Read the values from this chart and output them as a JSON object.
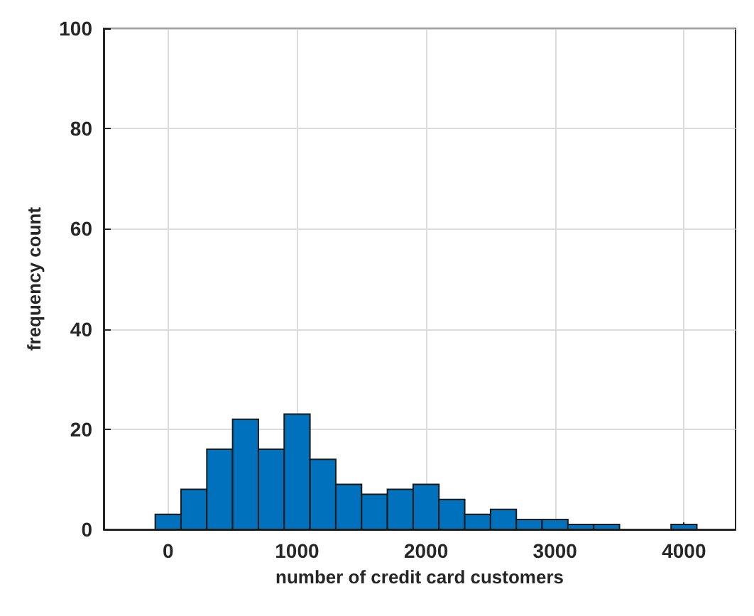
{
  "chart_data": {
    "type": "histogram",
    "xlabel": "number of credit card customers",
    "ylabel": "frequency count",
    "bins": [
      -100,
      100,
      300,
      500,
      700,
      900,
      1100,
      1300,
      1500,
      1700,
      1900,
      2100,
      2300,
      2500,
      2700,
      2900,
      3100,
      3300,
      3500,
      3700,
      3900,
      4100
    ],
    "values": [
      3,
      8,
      16,
      22,
      16,
      23,
      14,
      9,
      7,
      8,
      9,
      6,
      3,
      4,
      2,
      2,
      1,
      1,
      0,
      0,
      1
    ],
    "color": "#0072bd",
    "xlim": [
      -500,
      4400
    ],
    "xticks": [
      0,
      1000,
      2000,
      3000,
      4000
    ],
    "ylim": [
      0,
      100
    ],
    "yticks": [
      0,
      20,
      40,
      60,
      80,
      100
    ],
    "grid": true
  }
}
